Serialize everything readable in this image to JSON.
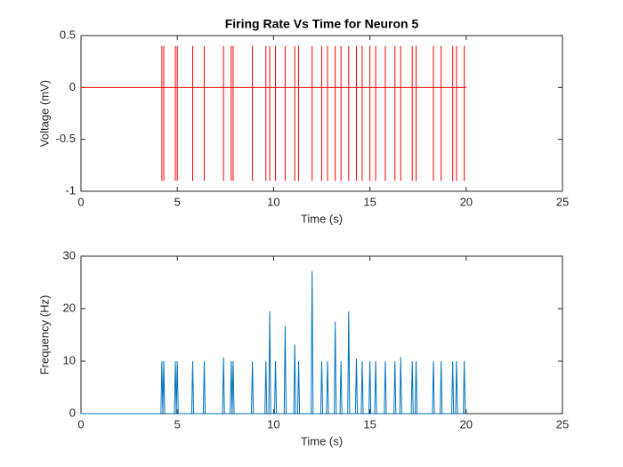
{
  "chart_data": [
    {
      "type": "line",
      "title": "Firing Rate Vs Time for Neuron 5",
      "xlabel": "Time (s)",
      "ylabel": "Voltage (mV)",
      "color": "#ff0000",
      "xlim": [
        0,
        25
      ],
      "xticks": [
        0,
        5,
        10,
        15,
        20,
        25
      ],
      "ylim": [
        -1,
        0.5
      ],
      "yticks": [
        -1,
        -0.5,
        0,
        0.5
      ],
      "grid": false,
      "x": [
        0,
        4.2,
        4.2,
        4.2,
        4.2,
        4.3,
        4.3,
        4.3,
        4.3,
        4.9,
        4.9,
        4.9,
        4.9,
        5,
        5,
        5,
        5,
        5.8,
        5.8,
        5.8,
        5.8,
        6.4,
        6.4,
        6.4,
        6.4,
        7.4,
        7.4,
        7.4,
        7.4,
        7.8,
        7.8,
        7.8,
        7.8,
        7.9,
        7.9,
        7.9,
        7.9,
        8.9,
        8.9,
        8.9,
        8.9,
        9.6,
        9.6,
        9.6,
        9.6,
        9.8,
        9.8,
        9.8,
        9.8,
        10.1,
        10.1,
        10.1,
        10.1,
        10.6,
        10.6,
        10.6,
        10.6,
        11.1,
        11.1,
        11.1,
        11.1,
        11.3,
        11.3,
        11.3,
        11.3,
        12,
        12,
        12,
        12,
        12.5,
        12.5,
        12.5,
        12.5,
        12.8,
        12.8,
        12.8,
        12.8,
        13.2,
        13.2,
        13.2,
        13.2,
        13.5,
        13.5,
        13.5,
        13.5,
        13.9,
        13.9,
        13.9,
        13.9,
        14.3,
        14.3,
        14.3,
        14.3,
        14.6,
        14.6,
        14.6,
        14.6,
        15,
        15,
        15,
        15,
        15.3,
        15.3,
        15.3,
        15.3,
        15.8,
        15.8,
        15.8,
        15.8,
        16.3,
        16.3,
        16.3,
        16.3,
        16.6,
        16.6,
        16.6,
        16.6,
        17.2,
        17.2,
        17.2,
        17.2,
        17.4,
        17.4,
        17.4,
        17.4,
        18.3,
        18.3,
        18.3,
        18.3,
        18.7,
        18.7,
        18.7,
        18.7,
        19.3,
        19.3,
        19.3,
        19.3,
        19.5,
        19.5,
        19.5,
        19.5,
        19.9,
        19.9,
        19.9,
        19.9,
        20
      ],
      "values": [
        0,
        0,
        0.4,
        -0.9,
        0,
        0,
        0.4,
        -0.9,
        0,
        0,
        0.4,
        -0.9,
        0,
        0,
        0.4,
        -0.9,
        0,
        0,
        0.4,
        -0.9,
        0,
        0,
        0.4,
        -0.9,
        0,
        0,
        0.4,
        -0.9,
        0,
        0,
        0.4,
        -0.9,
        0,
        0,
        0.4,
        -0.9,
        0,
        0,
        0.4,
        -0.9,
        0,
        0,
        0.4,
        -0.9,
        0,
        0,
        0.4,
        -0.9,
        0,
        0,
        0.4,
        -0.9,
        0,
        0,
        0.4,
        -0.9,
        0,
        0,
        0.4,
        -0.9,
        0,
        0,
        0.4,
        -0.9,
        0,
        0,
        0.4,
        -0.9,
        0,
        0,
        0.4,
        -0.9,
        0,
        0,
        0.4,
        -0.9,
        0,
        0,
        0.4,
        -0.9,
        0,
        0,
        0.4,
        -0.9,
        0,
        0,
        0.4,
        -0.9,
        0,
        0,
        0.4,
        -0.9,
        0,
        0,
        0.4,
        -0.9,
        0,
        0,
        0.4,
        -0.9,
        0,
        0,
        0.4,
        -0.9,
        0,
        0,
        0.4,
        -0.9,
        0,
        0,
        0.4,
        -0.9,
        0,
        0,
        0.4,
        -0.9,
        0,
        0,
        0.4,
        -0.9,
        0,
        0,
        0.4,
        -0.9,
        0,
        0,
        0.4,
        -0.9,
        0,
        0,
        0.4,
        -0.9,
        0,
        0,
        0.4,
        -0.9,
        0,
        0,
        0.4,
        -0.9,
        0,
        0,
        0.4,
        -0.9,
        0,
        0
      ]
    },
    {
      "type": "line",
      "xlabel": "Time (s)",
      "ylabel": "Frequency (Hz)",
      "color": "#0072bd",
      "xlim": [
        0,
        25
      ],
      "xticks": [
        0,
        5,
        10,
        15,
        20,
        25
      ],
      "ylim": [
        0,
        30
      ],
      "yticks": [
        0,
        10,
        20,
        30
      ],
      "grid": false,
      "x": [
        0,
        4.15,
        4.2,
        4.25,
        4.25,
        4.3,
        4.35,
        4.85,
        4.9,
        4.95,
        4.95,
        5,
        5.05,
        5.75,
        5.8,
        5.85,
        6.35,
        6.4,
        6.45,
        7.35,
        7.4,
        7.45,
        7.75,
        7.8,
        7.85,
        7.85,
        7.9,
        7.95,
        8.85,
        8.9,
        8.95,
        9.55,
        9.6,
        9.65,
        9.75,
        9.8,
        9.85,
        10.05,
        10.1,
        10.15,
        10.55,
        10.6,
        10.65,
        11.05,
        11.1,
        11.15,
        11.25,
        11.3,
        11.35,
        11.95,
        12,
        12.05,
        12.45,
        12.5,
        12.55,
        12.75,
        12.8,
        12.85,
        13.15,
        13.2,
        13.25,
        13.45,
        13.5,
        13.55,
        13.85,
        13.9,
        13.95,
        14.25,
        14.3,
        14.35,
        14.55,
        14.6,
        14.65,
        14.95,
        15,
        15.05,
        15.25,
        15.3,
        15.35,
        15.75,
        15.8,
        15.85,
        16.25,
        16.3,
        16.35,
        16.55,
        16.6,
        16.65,
        17.15,
        17.2,
        17.25,
        17.35,
        17.4,
        17.45,
        18.25,
        18.3,
        18.35,
        18.65,
        18.7,
        18.75,
        19.25,
        19.3,
        19.35,
        19.45,
        19.5,
        19.55,
        19.85,
        19.9,
        19.95,
        20
      ],
      "values": [
        0,
        0,
        10,
        0,
        0,
        10,
        0,
        0,
        10,
        0,
        0,
        10,
        0,
        0,
        10,
        0,
        0,
        10,
        0,
        0,
        10.7,
        0,
        0,
        10,
        0,
        0,
        10,
        0,
        0,
        10,
        0,
        0,
        10,
        0,
        0,
        19.5,
        0,
        0,
        10,
        0,
        0,
        16.7,
        0,
        0,
        13.2,
        0,
        0,
        10,
        0,
        0,
        27.2,
        0,
        0,
        10,
        0,
        0,
        10,
        0,
        0,
        17.5,
        0,
        0,
        10,
        0,
        0,
        19.5,
        0,
        0,
        10.5,
        0,
        0,
        10,
        0,
        0,
        10,
        0,
        0,
        10,
        0,
        0,
        10,
        0,
        0,
        10,
        0,
        0,
        10.8,
        0,
        0,
        10,
        0,
        0,
        10,
        0,
        0,
        10,
        0,
        0,
        10,
        0,
        0,
        10,
        0,
        0,
        10,
        0,
        0,
        10,
        0,
        0
      ]
    }
  ]
}
